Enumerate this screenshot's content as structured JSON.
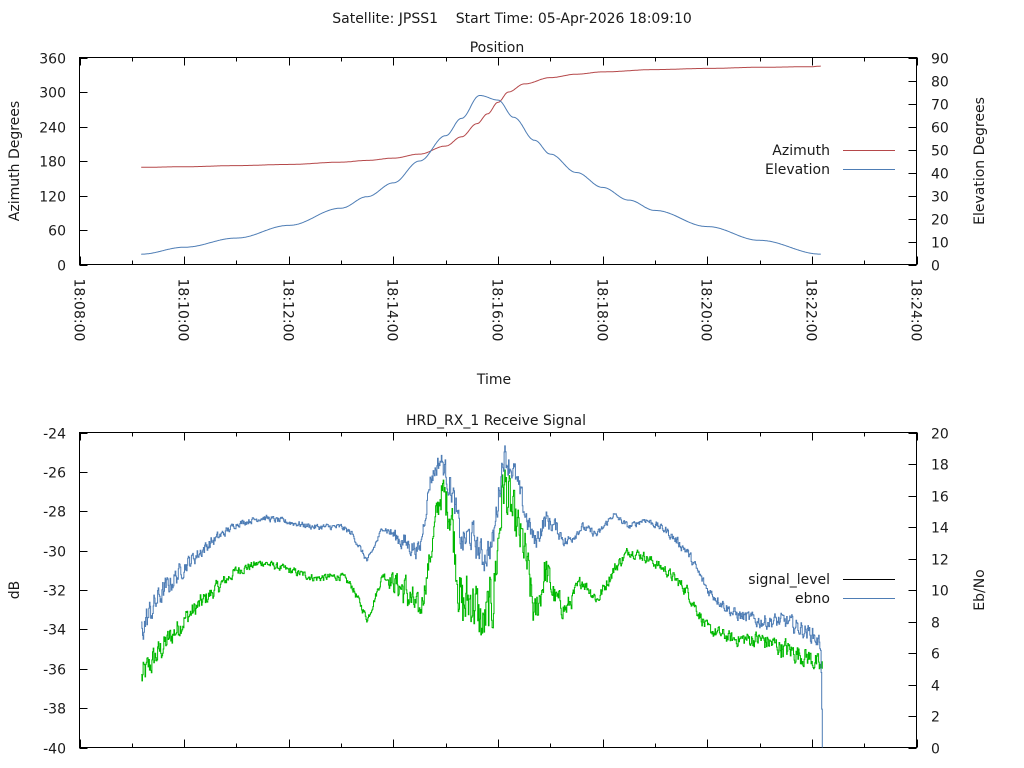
{
  "header": {
    "title": "Satellite: JPSS1    Start Time: 05-Apr-2026 18:09:10"
  },
  "chart_data": [
    {
      "type": "line",
      "title": "Position",
      "xlabel": "Time",
      "ylabel": "Azimuth Degrees",
      "y2label": "Elevation Degrees",
      "xlim_minutes": [
        0,
        16
      ],
      "x_origin": "18:08:00",
      "x_ticks": [
        "18:08:00",
        "18:10:00",
        "18:12:00",
        "18:14:00",
        "18:16:00",
        "18:18:00",
        "18:20:00",
        "18:22:00",
        "18:24:00"
      ],
      "ylim": [
        0,
        360
      ],
      "y_ticks": [
        "0",
        "60",
        "120",
        "180",
        "240",
        "300",
        "360"
      ],
      "y2lim": [
        0,
        90
      ],
      "y2_ticks": [
        "0",
        "10",
        "20",
        "30",
        "40",
        "50",
        "60",
        "70",
        "80",
        "90"
      ],
      "legend_position": "right",
      "series": [
        {
          "name": "Azimuth",
          "axis": "y",
          "color": "#b5484a",
          "x_minutes": [
            1.18,
            2.0,
            3.0,
            4.0,
            5.0,
            5.5,
            6.0,
            6.5,
            7.0,
            7.3,
            7.6,
            7.8,
            8.0,
            8.2,
            8.5,
            9.0,
            9.5,
            10.0,
            11.0,
            12.0,
            13.0,
            14.0,
            14.17
          ],
          "values": [
            169,
            170,
            172,
            174,
            178,
            181,
            185,
            192,
            206,
            222,
            245,
            262,
            282,
            300,
            314,
            325,
            331,
            335,
            339,
            341,
            343,
            344,
            345
          ]
        },
        {
          "name": "Elevation",
          "axis": "y2",
          "color": "#4e7db5",
          "x_minutes": [
            1.18,
            2.0,
            3.0,
            4.0,
            5.0,
            5.5,
            6.0,
            6.5,
            7.0,
            7.3,
            7.65,
            8.0,
            8.3,
            8.7,
            9.0,
            9.5,
            10.0,
            10.5,
            11.0,
            12.0,
            13.0,
            14.17
          ],
          "values": [
            4.5,
            7.5,
            11.5,
            17,
            24.5,
            29.5,
            35.5,
            45,
            56,
            63.5,
            73.5,
            71.5,
            64,
            54,
            48,
            40,
            33.5,
            28,
            23.5,
            16.5,
            10.5,
            4.5
          ]
        }
      ]
    },
    {
      "type": "line",
      "title": "HRD_RX_1 Receive Signal",
      "xlabel": "",
      "ylabel": "dB",
      "y2label": "Eb/No",
      "xlim_minutes": [
        0,
        16
      ],
      "ylim": [
        -40,
        -24
      ],
      "y_ticks": [
        "-40",
        "-38",
        "-36",
        "-34",
        "-32",
        "-30",
        "-28",
        "-26",
        "-24"
      ],
      "y2lim": [
        0,
        20
      ],
      "y2_ticks": [
        "0",
        "2",
        "4",
        "6",
        "8",
        "10",
        "12",
        "14",
        "16",
        "18",
        "20"
      ],
      "legend_position": "right",
      "legend": [
        {
          "name": "signal_level",
          "color": "#000000"
        },
        {
          "name": "ebno",
          "color": "#4e7db5"
        }
      ],
      "series": [
        {
          "name": "signal_level",
          "axis": "y",
          "color": "#00b800",
          "x_minutes": [
            1.18,
            1.5,
            2.0,
            2.5,
            3.0,
            3.5,
            4.0,
            4.5,
            5.0,
            5.2,
            5.5,
            5.8,
            6.2,
            6.5,
            6.7,
            6.9,
            7.1,
            7.3,
            7.5,
            7.7,
            7.9,
            8.1,
            8.3,
            8.5,
            8.7,
            8.9,
            9.1,
            9.3,
            9.6,
            9.9,
            10.2,
            10.5,
            10.8,
            11.2,
            11.6,
            12.0,
            12.5,
            13.0,
            13.5,
            14.0,
            14.17,
            14.2
          ],
          "values": [
            -36.5,
            -35.2,
            -33.5,
            -32.2,
            -31.0,
            -30.6,
            -31.0,
            -31.4,
            -31.3,
            -31.8,
            -33.5,
            -31.2,
            -32.0,
            -33.2,
            -30.3,
            -27.0,
            -28.0,
            -33.0,
            -32.3,
            -34.0,
            -32.5,
            -26.5,
            -28.5,
            -30.0,
            -33.5,
            -31.0,
            -32.5,
            -33.0,
            -31.5,
            -32.5,
            -31.0,
            -30.0,
            -30.3,
            -31.0,
            -32.0,
            -34.0,
            -34.5,
            -34.5,
            -35.0,
            -35.5,
            -36.0,
            -36.0
          ],
          "noise": [
            1.2,
            1.0,
            0.8,
            0.6,
            0.4,
            0.3,
            0.3,
            0.3,
            0.3,
            0.3,
            0.3,
            0.3,
            1.5,
            1.0,
            1.0,
            1.5,
            2.0,
            2.5,
            2.5,
            2.0,
            2.5,
            2.5,
            2.0,
            2.0,
            1.5,
            1.5,
            1.0,
            0.8,
            0.5,
            0.5,
            0.5,
            0.4,
            0.4,
            0.4,
            0.5,
            0.5,
            0.5,
            0.7,
            0.8,
            0.8,
            0.8,
            0.8
          ]
        },
        {
          "name": "ebno",
          "axis": "y2",
          "color": "#4e7db5",
          "x_minutes": [
            1.18,
            1.5,
            2.0,
            2.5,
            3.0,
            3.5,
            4.0,
            4.5,
            5.0,
            5.2,
            5.5,
            5.8,
            6.2,
            6.5,
            6.7,
            6.9,
            7.1,
            7.3,
            7.5,
            7.7,
            7.9,
            8.1,
            8.3,
            8.5,
            8.7,
            8.9,
            9.1,
            9.3,
            9.6,
            9.9,
            10.2,
            10.5,
            10.8,
            11.2,
            11.6,
            12.0,
            12.5,
            13.0,
            13.5,
            14.0,
            14.17,
            14.2
          ],
          "values": [
            7.5,
            9.5,
            11.5,
            13.0,
            14.2,
            14.6,
            14.3,
            14.0,
            14.0,
            13.6,
            11.8,
            14.0,
            13.0,
            12.5,
            17.0,
            18.3,
            16.5,
            13.0,
            13.5,
            12.0,
            13.0,
            18.7,
            17.5,
            15.0,
            13.0,
            14.5,
            14.0,
            13.0,
            14.0,
            13.5,
            14.8,
            14.0,
            14.5,
            13.8,
            12.5,
            10.0,
            8.5,
            8.0,
            8.0,
            7.2,
            6.5,
            0.0
          ],
          "noise": [
            1.5,
            1.2,
            0.8,
            0.6,
            0.3,
            0.3,
            0.3,
            0.3,
            0.3,
            0.3,
            0.3,
            0.3,
            1.0,
            0.8,
            0.8,
            1.0,
            1.5,
            1.5,
            1.5,
            1.5,
            1.5,
            1.5,
            1.2,
            1.2,
            1.0,
            1.0,
            0.8,
            0.6,
            0.4,
            0.4,
            0.3,
            0.3,
            0.3,
            0.4,
            0.5,
            0.5,
            0.6,
            0.7,
            0.8,
            0.8,
            0.8,
            0.0
          ]
        }
      ]
    }
  ]
}
